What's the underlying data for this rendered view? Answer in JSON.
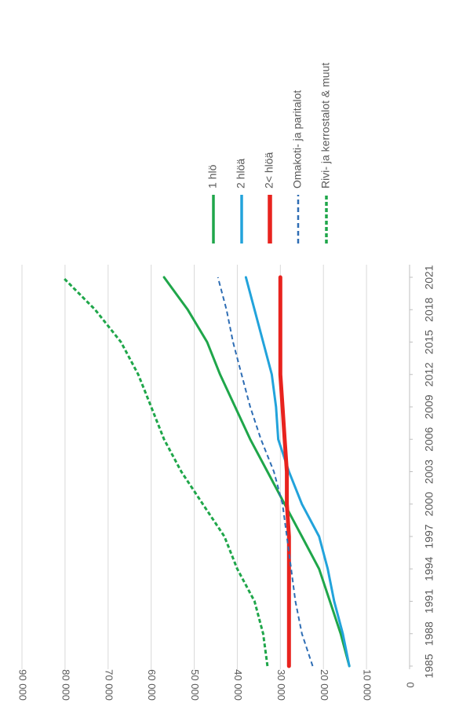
{
  "chart_data": {
    "type": "line",
    "title": "",
    "xlabel": "",
    "ylabel": "",
    "orientation": "rotated-90-clockwise",
    "grid": true,
    "legend_placement": "top",
    "ylim": [
      0,
      90000
    ],
    "yticks": [
      {
        "value": 0,
        "label": "0"
      },
      {
        "value": 10000,
        "label": "10 000"
      },
      {
        "value": 20000,
        "label": "20 000"
      },
      {
        "value": 30000,
        "label": "30 000"
      },
      {
        "value": 40000,
        "label": "40 000"
      },
      {
        "value": 50000,
        "label": "50 000"
      },
      {
        "value": 60000,
        "label": "60 000"
      },
      {
        "value": 70000,
        "label": "70 000"
      },
      {
        "value": 80000,
        "label": "80 000"
      },
      {
        "value": 90000,
        "label": "90 000"
      }
    ],
    "xlim": [
      1985,
      2021
    ],
    "xticks": [
      {
        "value": 1985,
        "label": "1985"
      },
      {
        "value": 1988,
        "label": "1988"
      },
      {
        "value": 1991,
        "label": "1991"
      },
      {
        "value": 1994,
        "label": "1994"
      },
      {
        "value": 1997,
        "label": "1997"
      },
      {
        "value": 2000,
        "label": "2000"
      },
      {
        "value": 2003,
        "label": "2003"
      },
      {
        "value": 2006,
        "label": "2006"
      },
      {
        "value": 2009,
        "label": "2009"
      },
      {
        "value": 2012,
        "label": "2012"
      },
      {
        "value": 2015,
        "label": "2015"
      },
      {
        "value": 2018,
        "label": "2018"
      },
      {
        "value": 2021,
        "label": "2021"
      }
    ],
    "series": [
      {
        "name": "1 hlö",
        "color": "#1FA64A",
        "dash": "solid",
        "weight": "medium",
        "points": [
          [
            1985,
            14000
          ],
          [
            1988,
            16000
          ],
          [
            1991,
            18500
          ],
          [
            1994,
            21000
          ],
          [
            1997,
            25000
          ],
          [
            2000,
            29000
          ],
          [
            2003,
            33000
          ],
          [
            2006,
            37000
          ],
          [
            2009,
            40500
          ],
          [
            2012,
            44000
          ],
          [
            2015,
            47000
          ],
          [
            2018,
            51500
          ],
          [
            2021,
            57000
          ]
        ]
      },
      {
        "name": "2 hlöä",
        "color": "#22A3DB",
        "dash": "solid",
        "weight": "medium",
        "points": [
          [
            1985,
            14000
          ],
          [
            1988,
            15500
          ],
          [
            1991,
            17500
          ],
          [
            1994,
            19000
          ],
          [
            1997,
            21000
          ],
          [
            2000,
            25000
          ],
          [
            2003,
            28000
          ],
          [
            2006,
            30500
          ],
          [
            2009,
            31000
          ],
          [
            2012,
            32000
          ],
          [
            2015,
            34000
          ],
          [
            2018,
            36000
          ],
          [
            2021,
            38000
          ]
        ]
      },
      {
        "name": "2< hlöä",
        "color": "#E8231E",
        "dash": "solid",
        "weight": "thick",
        "points": [
          [
            1985,
            28000
          ],
          [
            1988,
            28000
          ],
          [
            1991,
            28000
          ],
          [
            1994,
            28000
          ],
          [
            1997,
            28000
          ],
          [
            2000,
            28500
          ],
          [
            2003,
            28500
          ],
          [
            2006,
            29000
          ],
          [
            2009,
            29500
          ],
          [
            2012,
            30000
          ],
          [
            2015,
            30000
          ],
          [
            2018,
            30000
          ],
          [
            2021,
            30000
          ]
        ]
      },
      {
        "name": "Omakoti- ja paritalot",
        "color": "#2E6DB4",
        "dash": "dashed",
        "weight": "thin",
        "points": [
          [
            1985,
            22500
          ],
          [
            1988,
            25000
          ],
          [
            1991,
            26500
          ],
          [
            1994,
            27500
          ],
          [
            1997,
            28500
          ],
          [
            2000,
            29500
          ],
          [
            2003,
            31500
          ],
          [
            2006,
            34500
          ],
          [
            2009,
            37000
          ],
          [
            2012,
            39000
          ],
          [
            2015,
            41000
          ],
          [
            2018,
            42500
          ],
          [
            2021,
            44500
          ]
        ]
      },
      {
        "name": "Rivi- ja kerrostalot & muut",
        "color": "#1FA64A",
        "dash": "dotted",
        "weight": "medium",
        "points": [
          [
            1985,
            33000
          ],
          [
            1988,
            34000
          ],
          [
            1991,
            36000
          ],
          [
            1994,
            40000
          ],
          [
            1997,
            43000
          ],
          [
            2000,
            48000
          ],
          [
            2003,
            53000
          ],
          [
            2006,
            57000
          ],
          [
            2009,
            60000
          ],
          [
            2012,
            63000
          ],
          [
            2015,
            67000
          ],
          [
            2018,
            73000
          ],
          [
            2021,
            80500
          ]
        ]
      }
    ]
  }
}
